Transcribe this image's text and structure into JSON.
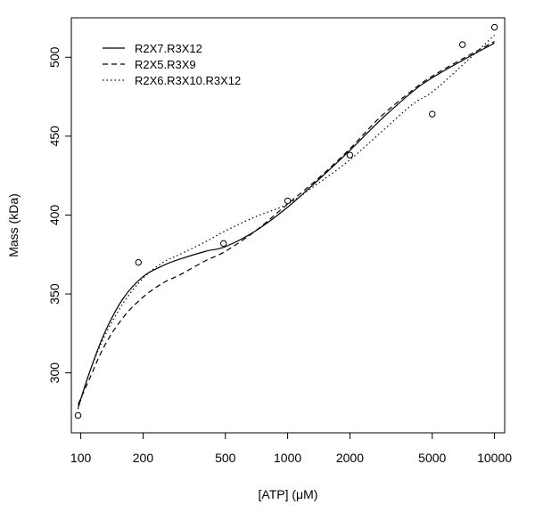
{
  "chart_data": {
    "type": "scatter",
    "xlabel": "[ATP] (μM)",
    "ylabel": "Mass (kDa)",
    "x_scale": "log",
    "xlim": [
      90,
      11200
    ],
    "ylim": [
      262,
      525
    ],
    "x_ticks": [
      100,
      200,
      500,
      1000,
      2000,
      5000,
      10000
    ],
    "x_tick_labels": [
      "100",
      "200",
      "500",
      "1000",
      "2000",
      "5000",
      "10000"
    ],
    "y_ticks": [
      300,
      350,
      400,
      450,
      500
    ],
    "y_tick_labels": [
      "300",
      "350",
      "400",
      "450",
      "500"
    ],
    "grid": false,
    "legend_position": "top-left",
    "colors": {
      "ink": "#000000",
      "background": "#ffffff"
    },
    "points": {
      "x": [
        97,
        190,
        490,
        1000,
        2000,
        5000,
        7000,
        10000
      ],
      "y": [
        273,
        370,
        382,
        409,
        438,
        464,
        508,
        519
      ]
    },
    "series": [
      {
        "name": "R2X7.R3X12",
        "style": "solid",
        "x": [
          97,
          110,
          130,
          160,
          200,
          250,
          300,
          400,
          500,
          700,
          1000,
          1400,
          2000,
          2800,
          4000,
          5000,
          7000,
          10000
        ],
        "y": [
          278,
          300,
          325,
          347,
          361,
          368,
          372,
          377,
          380,
          390,
          405,
          422,
          441,
          460,
          478,
          487,
          498,
          509
        ]
      },
      {
        "name": "R2X5.R3X9",
        "style": "dashed",
        "x": [
          97,
          110,
          130,
          160,
          200,
          250,
          300,
          400,
          500,
          700,
          1000,
          1400,
          2000,
          2800,
          4000,
          5000,
          7000,
          10000
        ],
        "y": [
          280,
          296,
          317,
          335,
          348,
          357,
          362,
          371,
          377,
          390,
          407,
          423,
          442,
          462,
          479,
          488,
          499,
          510
        ]
      },
      {
        "name": "R2X6.R3X10.R3X12",
        "style": "dotted",
        "x": [
          97,
          110,
          130,
          160,
          200,
          250,
          300,
          400,
          500,
          700,
          1000,
          1400,
          2000,
          2800,
          4000,
          5000,
          7000,
          10000
        ],
        "y": [
          277,
          300,
          323,
          344,
          360,
          370,
          375,
          383,
          390,
          399,
          407,
          420,
          435,
          452,
          470,
          478,
          495,
          514
        ]
      }
    ]
  }
}
